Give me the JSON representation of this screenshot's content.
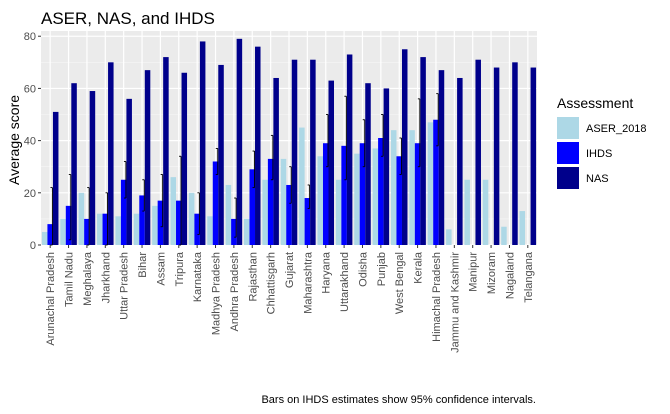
{
  "chart_data": {
    "type": "bar",
    "title": "ASER, NAS, and IHDS",
    "xlabel": "",
    "ylabel": "Average score",
    "ylim": [
      0,
      82
    ],
    "yticks": [
      0,
      20,
      40,
      60,
      80
    ],
    "grid": true,
    "legend": {
      "title": "Assessment",
      "position": "right"
    },
    "caption": "Bars on IHDS estimates show 95% confidence intervals.",
    "categories": [
      "Arunachal Pradesh",
      "Tamil Nadu",
      "Meghalaya",
      "Jharkhand",
      "Uttar Pradesh",
      "Bihar",
      "Assam",
      "Tripura",
      "Karnataka",
      "Madhya Pradesh",
      "Andhra Pradesh",
      "Rajasthan",
      "Chhattisgarh",
      "Gujarat",
      "Maharashtra",
      "Haryana",
      "Uttarakhand",
      "Odisha",
      "Punjab",
      "West Bengal",
      "Kerala",
      "Himachal Pradesh",
      "Jammu and Kashmir",
      "Manipur",
      "Mizoram",
      "Nagaland",
      "Telangana"
    ],
    "series": [
      {
        "name": "ASER_2018",
        "color": "#add8e6",
        "values": [
          5,
          10,
          20,
          12,
          11,
          12,
          15,
          26,
          20,
          11,
          23,
          10,
          25,
          33,
          45,
          34,
          25,
          35,
          37,
          44,
          44,
          47,
          6,
          25,
          25,
          7,
          13
        ]
      },
      {
        "name": "IHDS",
        "color": "#0000ff",
        "values": [
          8,
          15,
          10,
          12,
          25,
          19,
          17,
          17,
          12,
          32,
          10,
          29,
          33,
          23,
          18,
          39,
          38,
          39,
          41,
          34,
          39,
          48,
          null,
          null,
          null,
          null,
          null
        ],
        "ci_low": [
          0,
          2,
          0,
          0,
          18,
          13,
          7,
          0,
          4,
          27,
          3,
          22,
          25,
          16,
          14,
          30,
          25,
          30,
          34,
          27,
          30,
          38,
          null,
          null,
          null,
          null,
          null
        ],
        "ci_high": [
          22,
          27,
          22,
          20,
          32,
          25,
          27,
          34,
          20,
          37,
          18,
          36,
          42,
          30,
          23,
          50,
          57,
          48,
          50,
          41,
          56,
          58,
          null,
          null,
          null,
          null,
          null
        ]
      },
      {
        "name": "NAS",
        "color": "#00008b",
        "values": [
          51,
          62,
          59,
          70,
          56,
          67,
          72,
          66,
          78,
          69,
          79,
          76,
          64,
          71,
          71,
          63,
          73,
          62,
          60,
          75,
          72,
          67,
          64,
          71,
          68,
          70,
          68
        ]
      }
    ]
  }
}
